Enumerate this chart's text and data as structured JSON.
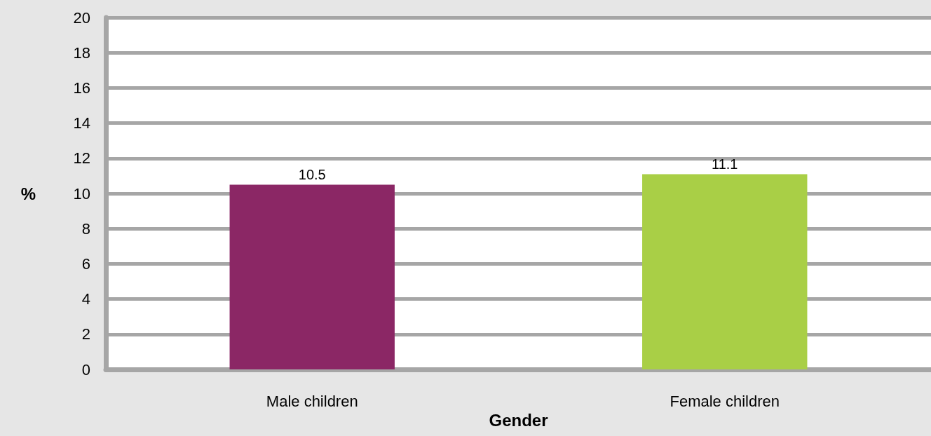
{
  "chart_data": {
    "type": "bar",
    "xlabel": "Gender",
    "ylabel": "%",
    "categories": [
      "Male children",
      "Female children"
    ],
    "values": [
      10.5,
      11.1
    ],
    "colors": [
      "#8b2765",
      "#a9cf46"
    ],
    "ylim": [
      0,
      20
    ],
    "yticks": [
      0,
      2,
      4,
      6,
      8,
      10,
      12,
      14,
      16,
      18,
      20
    ],
    "grid": true,
    "data_labels": true
  }
}
